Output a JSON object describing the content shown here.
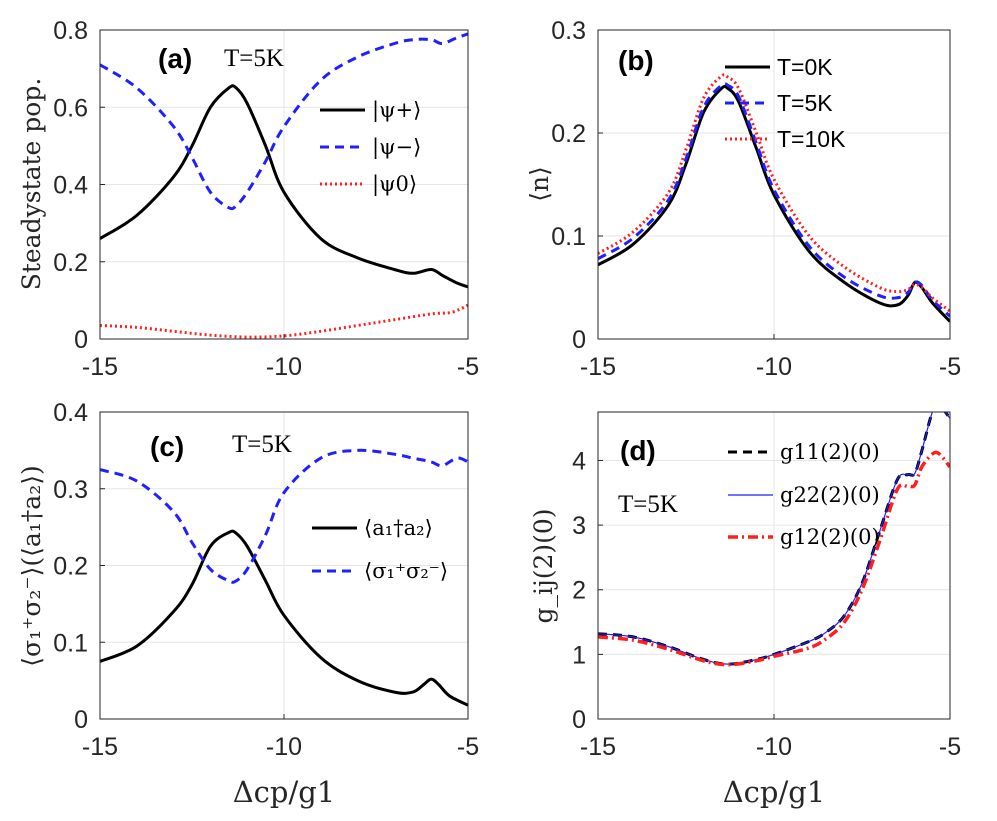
{
  "chart_data": [
    {
      "id": "a",
      "type": "line",
      "panel_label": "(a)",
      "annotation": "T=5K",
      "ylabel": "Steadystate pop.",
      "xlabel": "",
      "xlim": [
        -15,
        -5
      ],
      "ylim": [
        0,
        0.8
      ],
      "xticks": [
        -15,
        -10,
        -5
      ],
      "xtick_labels": [
        "-15",
        "-10",
        "-5"
      ],
      "yticks": [
        0,
        0.2,
        0.4,
        0.6,
        0.8
      ],
      "ytick_labels": [
        "0",
        "0.2",
        "0.4",
        "0.6",
        "0.8"
      ],
      "grid": true,
      "legend_position": "top-right",
      "series": [
        {
          "name": "|ψ+⟩",
          "color": "#000000",
          "dash": "solid",
          "width": 3,
          "x": [
            -15,
            -14,
            -13,
            -12.5,
            -12,
            -11.5,
            -11.3,
            -11,
            -10.5,
            -10,
            -9,
            -8,
            -7,
            -6.5,
            -6,
            -5.7,
            -5.3,
            -5
          ],
          "y": [
            0.26,
            0.32,
            0.42,
            0.5,
            0.6,
            0.65,
            0.65,
            0.61,
            0.5,
            0.38,
            0.26,
            0.21,
            0.18,
            0.17,
            0.18,
            0.165,
            0.145,
            0.135
          ]
        },
        {
          "name": "|ψ−⟩",
          "color": "#1f1fff",
          "dash": "dashed",
          "width": 3,
          "x": [
            -15,
            -14,
            -13,
            -12.5,
            -12,
            -11.5,
            -11.3,
            -11,
            -10.5,
            -10,
            -9,
            -8,
            -7,
            -6.5,
            -6,
            -5.7,
            -5.3,
            -5
          ],
          "y": [
            0.71,
            0.65,
            0.55,
            0.47,
            0.38,
            0.34,
            0.345,
            0.38,
            0.46,
            0.55,
            0.67,
            0.73,
            0.765,
            0.775,
            0.775,
            0.765,
            0.78,
            0.79
          ]
        },
        {
          "name": "|ψ0⟩",
          "color": "#ff1f1f",
          "dash": "dotted",
          "width": 3,
          "x": [
            -15,
            -14,
            -13,
            -12,
            -11,
            -10,
            -9,
            -8,
            -7,
            -6,
            -5.5,
            -5.2,
            -5
          ],
          "y": [
            0.035,
            0.03,
            0.02,
            0.01,
            0.005,
            0.008,
            0.02,
            0.035,
            0.05,
            0.065,
            0.068,
            0.078,
            0.088
          ]
        }
      ]
    },
    {
      "id": "b",
      "type": "line",
      "panel_label": "(b)",
      "ylabel": "⟨n⟩",
      "xlabel": "",
      "xlim": [
        -15,
        -5
      ],
      "ylim": [
        0,
        0.3
      ],
      "xticks": [
        -15,
        -10,
        -5
      ],
      "xtick_labels": [
        "-15",
        "-10",
        "-5"
      ],
      "yticks": [
        0,
        0.1,
        0.2,
        0.3
      ],
      "ytick_labels": [
        "0",
        "0.1",
        "0.2",
        "0.3"
      ],
      "grid": true,
      "legend_position": "top-right",
      "series": [
        {
          "name": "T=0K",
          "color": "#000000",
          "dash": "solid",
          "width": 3,
          "x": [
            -15,
            -14,
            -13,
            -12.5,
            -12,
            -11.5,
            -11.3,
            -11,
            -10.5,
            -10,
            -9,
            -8,
            -7,
            -6.5,
            -6.2,
            -6,
            -5.8,
            -5.5,
            -5
          ],
          "y": [
            0.072,
            0.092,
            0.13,
            0.17,
            0.22,
            0.243,
            0.243,
            0.23,
            0.185,
            0.14,
            0.085,
            0.055,
            0.035,
            0.033,
            0.042,
            0.055,
            0.05,
            0.035,
            0.017
          ]
        },
        {
          "name": "T=5K",
          "color": "#1f1fff",
          "dash": "dashed",
          "width": 3,
          "x": [
            -15,
            -14,
            -13,
            -12.5,
            -12,
            -11.5,
            -11.3,
            -11,
            -10.5,
            -10,
            -9,
            -8,
            -7,
            -6.5,
            -6.2,
            -6,
            -5.8,
            -5.5,
            -5
          ],
          "y": [
            0.078,
            0.098,
            0.135,
            0.175,
            0.225,
            0.246,
            0.246,
            0.235,
            0.19,
            0.145,
            0.09,
            0.06,
            0.042,
            0.04,
            0.045,
            0.055,
            0.052,
            0.038,
            0.022
          ]
        },
        {
          "name": "T=10K",
          "color": "#ff1f1f",
          "dash": "dotted",
          "width": 3,
          "x": [
            -15,
            -14,
            -13,
            -12.5,
            -12,
            -11.5,
            -11.3,
            -11,
            -10.5,
            -10,
            -9,
            -8,
            -7,
            -6.5,
            -6.2,
            -6,
            -5.8,
            -5.5,
            -5
          ],
          "y": [
            0.083,
            0.104,
            0.142,
            0.184,
            0.234,
            0.255,
            0.254,
            0.243,
            0.2,
            0.155,
            0.1,
            0.07,
            0.05,
            0.046,
            0.048,
            0.053,
            0.05,
            0.04,
            0.027
          ]
        }
      ]
    },
    {
      "id": "c",
      "type": "line",
      "panel_label": "(c)",
      "annotation": "T=5K",
      "ylabel": "⟨σ₁⁺σ₂⁻⟩(⟨a₁†a₂⟩)",
      "xlabel": "Δcp/g1",
      "xlim": [
        -15,
        -5
      ],
      "ylim": [
        0,
        0.4
      ],
      "xticks": [
        -15,
        -10,
        -5
      ],
      "xtick_labels": [
        "-15",
        "-10",
        "-5"
      ],
      "yticks": [
        0,
        0.1,
        0.2,
        0.3,
        0.4
      ],
      "ytick_labels": [
        "0",
        "0.1",
        "0.2",
        "0.3",
        "0.4"
      ],
      "grid": true,
      "legend_position": "right",
      "series": [
        {
          "name": "⟨a₁†a₂⟩",
          "color": "#000000",
          "dash": "solid",
          "width": 3,
          "x": [
            -15,
            -14,
            -13,
            -12.5,
            -12,
            -11.5,
            -11.3,
            -11,
            -10.5,
            -10,
            -9,
            -8,
            -7,
            -6.5,
            -6.2,
            -6,
            -5.8,
            -5.5,
            -5
          ],
          "y": [
            0.075,
            0.095,
            0.14,
            0.175,
            0.225,
            0.243,
            0.242,
            0.225,
            0.18,
            0.135,
            0.08,
            0.05,
            0.035,
            0.035,
            0.045,
            0.052,
            0.045,
            0.03,
            0.018
          ]
        },
        {
          "name": "⟨σ₁⁺σ₂⁻⟩",
          "color": "#1f1fff",
          "dash": "dashed",
          "width": 3,
          "x": [
            -15,
            -14,
            -13,
            -12.5,
            -12,
            -11.5,
            -11.3,
            -11,
            -10.5,
            -10,
            -9,
            -8,
            -7,
            -6.5,
            -6,
            -5.7,
            -5.3,
            -5
          ],
          "y": [
            0.325,
            0.31,
            0.27,
            0.23,
            0.195,
            0.18,
            0.18,
            0.195,
            0.24,
            0.295,
            0.34,
            0.35,
            0.345,
            0.34,
            0.335,
            0.33,
            0.34,
            0.335
          ]
        }
      ]
    },
    {
      "id": "d",
      "type": "line",
      "panel_label": "(d)",
      "annotation": "T=5K",
      "ylabel": "g_ij(2)(0)",
      "xlabel": "Δcp/g1",
      "xlim": [
        -15,
        -5
      ],
      "ylim": [
        0,
        4.75
      ],
      "xticks": [
        -15,
        -10,
        -5
      ],
      "xtick_labels": [
        "-15",
        "-10",
        "-5"
      ],
      "yticks": [
        0,
        1,
        2,
        3,
        4
      ],
      "ytick_labels": [
        "0",
        "1",
        "2",
        "3",
        "4"
      ],
      "grid": true,
      "legend_position": "top-right",
      "series": [
        {
          "name": "g11(2)(0)",
          "color": "#000000",
          "dash": "dashed",
          "width": 3,
          "x": [
            -15,
            -14,
            -13,
            -12,
            -11.3,
            -10.5,
            -10,
            -9,
            -8.5,
            -8,
            -7.5,
            -7,
            -6.5,
            -6.2,
            -6,
            -5.8,
            -5.5,
            -5.3,
            -5
          ],
          "y": [
            1.32,
            1.27,
            1.12,
            0.92,
            0.85,
            0.92,
            1.0,
            1.2,
            1.35,
            1.6,
            2.1,
            2.9,
            3.7,
            3.78,
            3.8,
            4.15,
            4.75,
            4.85,
            4.65
          ]
        },
        {
          "name": "g22(2)(0)",
          "color": "#1f1fff",
          "dash": "solid",
          "width": 1.2,
          "x": [
            -15,
            -14,
            -13,
            -12,
            -11.3,
            -10.5,
            -10,
            -9,
            -8.5,
            -8,
            -7.5,
            -7,
            -6.5,
            -6.2,
            -6,
            -5.8,
            -5.5,
            -5.3,
            -5
          ],
          "y": [
            1.32,
            1.27,
            1.12,
            0.92,
            0.85,
            0.92,
            1.0,
            1.2,
            1.35,
            1.6,
            2.1,
            2.9,
            3.7,
            3.78,
            3.8,
            4.15,
            4.75,
            4.85,
            4.65
          ]
        },
        {
          "name": "g12(2)(0)",
          "color": "#ff1f1f",
          "dash": "dashdot",
          "width": 3.5,
          "x": [
            -15,
            -14,
            -13,
            -12,
            -11.3,
            -10.5,
            -10,
            -9,
            -8.5,
            -8,
            -7.5,
            -7,
            -6.5,
            -6.2,
            -6,
            -5.8,
            -5.5,
            -5.3,
            -5
          ],
          "y": [
            1.27,
            1.22,
            1.08,
            0.9,
            0.84,
            0.9,
            0.97,
            1.1,
            1.25,
            1.5,
            2.0,
            2.75,
            3.55,
            3.6,
            3.62,
            3.9,
            4.1,
            4.1,
            3.9
          ]
        }
      ]
    }
  ]
}
